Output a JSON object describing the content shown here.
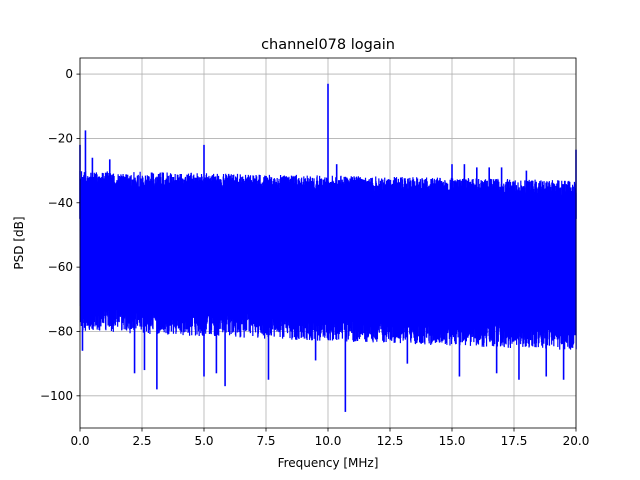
{
  "chart_data": {
    "type": "line",
    "title": "channel078 logain",
    "xlabel": "Frequency [MHz]",
    "ylabel": "PSD [dB]",
    "xlim": [
      0,
      20
    ],
    "ylim": [
      -110,
      5
    ],
    "xticks": [
      0.0,
      2.5,
      5.0,
      7.5,
      10.0,
      12.5,
      15.0,
      17.5,
      20.0
    ],
    "xtick_labels": [
      "0.0",
      "2.5",
      "5.0",
      "7.5",
      "10.0",
      "12.5",
      "15.0",
      "17.5",
      "20.0"
    ],
    "yticks": [
      0,
      -20,
      -40,
      -60,
      -80,
      -100
    ],
    "ytick_labels": [
      "0",
      "−20",
      "−40",
      "−60",
      "−80",
      "−100"
    ],
    "grid": true,
    "color": "#0000ff",
    "band": {
      "upper_start": -30,
      "upper_end": -33,
      "lower_start": -72,
      "lower_end": -78
    },
    "peaks": [
      {
        "x": 0.0,
        "y": -22
      },
      {
        "x": 0.22,
        "y": -17.5
      },
      {
        "x": 0.5,
        "y": -26
      },
      {
        "x": 1.2,
        "y": -26.5
      },
      {
        "x": 5.0,
        "y": -22
      },
      {
        "x": 10.0,
        "y": -3
      },
      {
        "x": 10.35,
        "y": -28
      },
      {
        "x": 15.0,
        "y": -28
      },
      {
        "x": 15.5,
        "y": -28
      },
      {
        "x": 16.0,
        "y": -29
      },
      {
        "x": 16.5,
        "y": -29
      },
      {
        "x": 17.0,
        "y": -29
      },
      {
        "x": 18.0,
        "y": -30
      },
      {
        "x": 20.0,
        "y": -23.5
      }
    ],
    "dips": [
      {
        "x": 0.1,
        "y": -86
      },
      {
        "x": 2.2,
        "y": -93
      },
      {
        "x": 2.6,
        "y": -92
      },
      {
        "x": 3.1,
        "y": -98
      },
      {
        "x": 5.0,
        "y": -94
      },
      {
        "x": 5.5,
        "y": -93
      },
      {
        "x": 5.85,
        "y": -97
      },
      {
        "x": 7.6,
        "y": -95
      },
      {
        "x": 9.5,
        "y": -89
      },
      {
        "x": 10.7,
        "y": -105
      },
      {
        "x": 13.2,
        "y": -90
      },
      {
        "x": 15.3,
        "y": -94
      },
      {
        "x": 16.8,
        "y": -93
      },
      {
        "x": 17.7,
        "y": -95
      },
      {
        "x": 18.8,
        "y": -94
      },
      {
        "x": 19.5,
        "y": -95
      }
    ]
  }
}
